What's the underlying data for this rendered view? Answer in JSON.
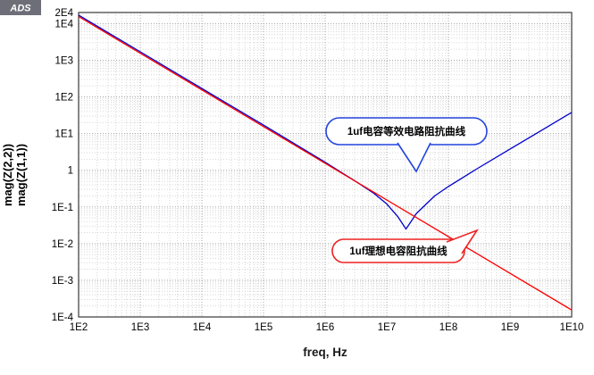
{
  "app": {
    "logo_label": "ADS"
  },
  "chart_data": {
    "type": "line",
    "title": "",
    "x_axis": {
      "label": "freq, Hz",
      "scale": "log",
      "min": 100.0,
      "max": 10000000000.0,
      "tick_labels": [
        "1E2",
        "1E3",
        "1E4",
        "1E5",
        "1E6",
        "1E7",
        "1E8",
        "1E9",
        "1E10"
      ]
    },
    "y_axis": {
      "scale": "log",
      "min": 0.0001,
      "max": 20000.0,
      "tick_labels": [
        "2E4",
        "1E4",
        "1E3",
        "1E2",
        "1E1",
        "1",
        "1E-1",
        "1E-2",
        "1E-3",
        "1E-4"
      ],
      "axis_titles": [
        {
          "text": "mag(Z(2,2))",
          "color": "#0000cc"
        },
        {
          "text": "mag(Z(1,1))",
          "color": "#dd0000"
        }
      ]
    },
    "grid": true,
    "legend": "none",
    "series": [
      {
        "name": "mag(Z(2,2))",
        "color": "#0000cc",
        "points": [
          [
            100.0,
            17000.0
          ],
          [
            1000.0,
            1700.0
          ],
          [
            10000.0,
            170.0
          ],
          [
            100000.0,
            17
          ],
          [
            1000000.0,
            1.65
          ],
          [
            3000000.0,
            0.52
          ],
          [
            6000000.0,
            0.243
          ],
          [
            10000000.0,
            0.121
          ],
          [
            15000000.0,
            0.055
          ],
          [
            20500000.0,
            0.025
          ],
          [
            26000000.0,
            0.045
          ],
          [
            30000000.0,
            0.065
          ],
          [
            60000000.0,
            0.2
          ],
          [
            100000000.0,
            0.36
          ],
          [
            300000000.0,
            1.13
          ],
          [
            1000000000.0,
            3.8
          ],
          [
            3000000000.0,
            11.3
          ],
          [
            10000000000.0,
            37.7
          ]
        ]
      },
      {
        "name": "mag(Z(1,1))",
        "color": "#ff0000",
        "points": [
          [
            100.0,
            15500.0
          ],
          [
            10000000000.0,
            0.000155
          ]
        ]
      }
    ],
    "annotations": [
      {
        "text": "1uf电容等效电路阻抗曲线",
        "color": "#2244dd",
        "target_series": "mag(Z(2,2))"
      },
      {
        "text": "1uf理想电容阻抗曲线",
        "color": "#ee2222",
        "target_series": "mag(Z(1,1))"
      }
    ]
  }
}
